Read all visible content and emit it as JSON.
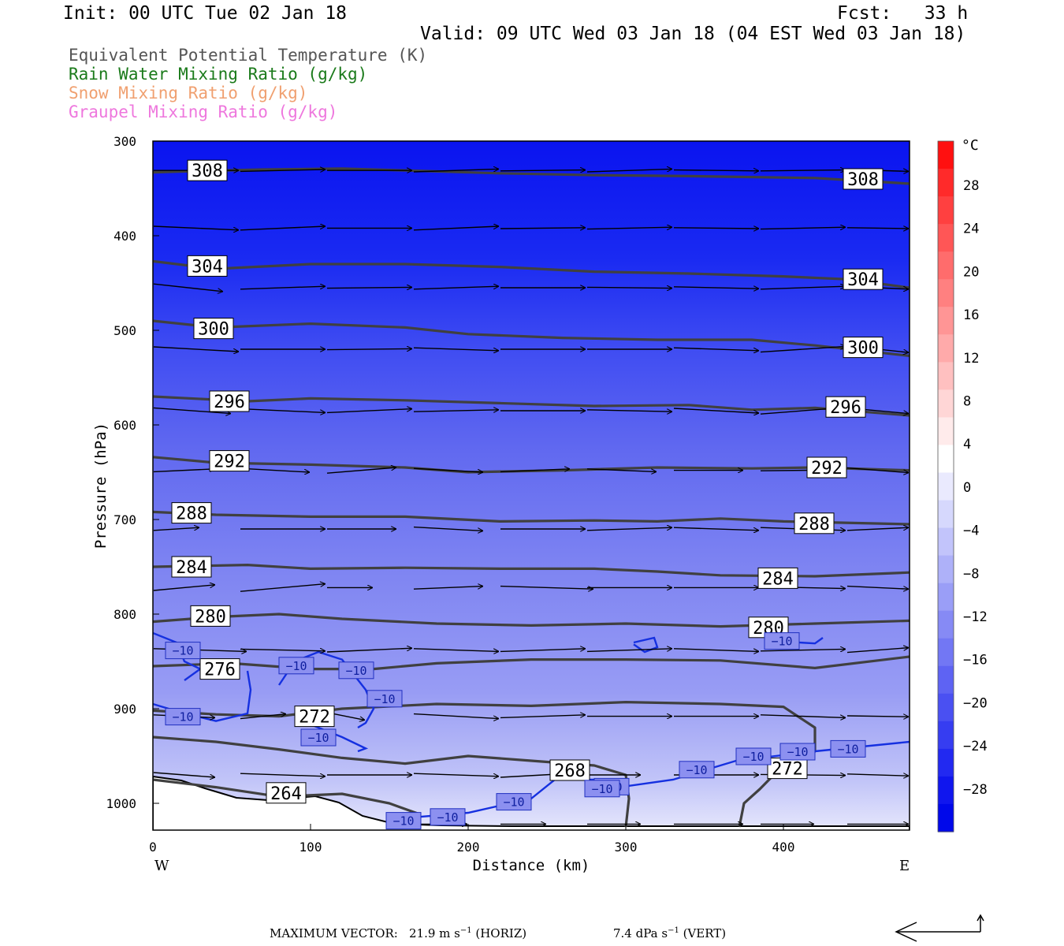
{
  "header": {
    "init": "Init: 00 UTC Tue 02 Jan 18",
    "fcst": "Fcst:   33 h",
    "valid": "Valid: 09 UTC Wed 03 Jan 18 (04 EST Wed 03 Jan 18)"
  },
  "fields": [
    {
      "label": "Equivalent Potential Temperature (K)",
      "color": "#555555"
    },
    {
      "label": "Rain Water Mixing Ratio (g/kg)",
      "color": "#1a7a1a"
    },
    {
      "label": "Snow Mixing Ratio (g/kg)",
      "color": "#f0a070"
    },
    {
      "label": "Graupel Mixing Ratio (g/kg)",
      "color": "#ee77dd"
    }
  ],
  "chart_data": {
    "type": "cross-section contour",
    "xlabel": "Distance (km)",
    "ylabel": "Pressure (hPa)",
    "xlim": [
      0,
      480
    ],
    "ylim": [
      1025,
      300
    ],
    "x_ticks": [
      0,
      100,
      200,
      300,
      400
    ],
    "y_ticks": [
      300,
      400,
      500,
      600,
      700,
      800,
      900,
      1000
    ],
    "x_end_labels": {
      "left": "W",
      "right": "E"
    },
    "colorbar": {
      "unit": "°C",
      "tick_labels": [
        "28",
        "24",
        "20",
        "16",
        "12",
        "8",
        "4",
        "0",
        "−4",
        "−8",
        "−12",
        "−16",
        "−20",
        "−24",
        "−28"
      ]
    },
    "theta_e_contours": [
      {
        "level": 308,
        "label": "308",
        "points": [
          [
            0,
            333
          ],
          [
            20,
            332
          ],
          [
            70,
            330
          ],
          [
            120,
            329
          ],
          [
            160,
            331
          ],
          [
            220,
            334
          ],
          [
            280,
            336
          ],
          [
            340,
            337
          ],
          [
            420,
            339
          ],
          [
            480,
            345
          ]
        ]
      },
      {
        "level": 304,
        "label": "304",
        "points": [
          [
            0,
            427
          ],
          [
            40,
            435
          ],
          [
            100,
            430
          ],
          [
            160,
            430
          ],
          [
            220,
            433
          ],
          [
            280,
            438
          ],
          [
            340,
            440
          ],
          [
            400,
            443
          ],
          [
            440,
            446
          ],
          [
            480,
            455
          ]
        ]
      },
      {
        "level": 300,
        "label": "300",
        "points": [
          [
            0,
            490
          ],
          [
            40,
            497
          ],
          [
            100,
            493
          ],
          [
            160,
            497
          ],
          [
            200,
            504
          ],
          [
            260,
            508
          ],
          [
            320,
            510
          ],
          [
            380,
            510
          ],
          [
            420,
            516
          ],
          [
            480,
            527
          ]
        ]
      },
      {
        "level": 296,
        "label": "296",
        "points": [
          [
            0,
            570
          ],
          [
            60,
            575
          ],
          [
            100,
            572
          ],
          [
            160,
            574
          ],
          [
            220,
            577
          ],
          [
            280,
            580
          ],
          [
            340,
            579
          ],
          [
            380,
            584
          ],
          [
            420,
            582
          ],
          [
            480,
            590
          ]
        ]
      },
      {
        "level": 292,
        "label": "292",
        "points": [
          [
            0,
            634
          ],
          [
            40,
            640
          ],
          [
            100,
            642
          ],
          [
            160,
            645
          ],
          [
            200,
            650
          ],
          [
            260,
            648
          ],
          [
            320,
            645
          ],
          [
            380,
            646
          ],
          [
            420,
            645
          ],
          [
            480,
            648
          ]
        ]
      },
      {
        "level": 288,
        "label": "288",
        "points": [
          [
            0,
            692
          ],
          [
            40,
            695
          ],
          [
            100,
            697
          ],
          [
            160,
            697
          ],
          [
            220,
            702
          ],
          [
            280,
            701
          ],
          [
            320,
            702
          ],
          [
            360,
            699
          ],
          [
            400,
            702
          ],
          [
            480,
            705
          ]
        ]
      },
      {
        "level": 284,
        "label": "284",
        "points": [
          [
            0,
            750
          ],
          [
            60,
            748
          ],
          [
            100,
            752
          ],
          [
            160,
            751
          ],
          [
            220,
            752
          ],
          [
            280,
            752
          ],
          [
            320,
            755
          ],
          [
            360,
            759
          ],
          [
            420,
            760
          ],
          [
            480,
            756
          ]
        ]
      },
      {
        "level": 280,
        "label": "280",
        "points": [
          [
            0,
            808
          ],
          [
            40,
            803
          ],
          [
            80,
            800
          ],
          [
            120,
            805
          ],
          [
            180,
            810
          ],
          [
            240,
            812
          ],
          [
            300,
            810
          ],
          [
            360,
            813
          ],
          [
            420,
            810
          ],
          [
            480,
            807
          ]
        ]
      },
      {
        "level": 276,
        "label": "276",
        "points": [
          [
            0,
            855
          ],
          [
            50,
            852
          ],
          [
            100,
            858
          ],
          [
            140,
            858
          ],
          [
            180,
            852
          ],
          [
            240,
            848
          ],
          [
            300,
            848
          ],
          [
            360,
            849
          ],
          [
            420,
            857
          ],
          [
            480,
            845
          ]
        ]
      },
      {
        "level": 272,
        "label": "272",
        "points": [
          [
            0,
            902
          ],
          [
            40,
            906
          ],
          [
            80,
            908
          ],
          [
            120,
            900
          ],
          [
            180,
            895
          ],
          [
            240,
            897
          ],
          [
            300,
            893
          ],
          [
            360,
            895
          ],
          [
            400,
            898
          ],
          [
            420,
            920
          ],
          [
            420,
            945
          ],
          [
            410,
            960
          ],
          [
            395,
            968
          ],
          [
            385,
            985
          ],
          [
            375,
            1000
          ],
          [
            372,
            1025
          ]
        ]
      },
      {
        "level": 268,
        "label": "268",
        "points": [
          [
            0,
            930
          ],
          [
            40,
            935
          ],
          [
            80,
            943
          ],
          [
            120,
            952
          ],
          [
            160,
            958
          ],
          [
            200,
            950
          ],
          [
            240,
            955
          ],
          [
            280,
            960
          ],
          [
            300,
            970
          ],
          [
            302,
            995
          ],
          [
            300,
            1025
          ]
        ]
      },
      {
        "level": 264,
        "label": "264",
        "points": [
          [
            0,
            975
          ],
          [
            40,
            983
          ],
          [
            80,
            993
          ],
          [
            120,
            990
          ],
          [
            150,
            1000
          ],
          [
            170,
            1012
          ]
        ]
      }
    ],
    "temperature_contours": [
      {
        "label": "-10",
        "points": [
          [
            0,
            820
          ],
          [
            15,
            830
          ],
          [
            20,
            850
          ],
          [
            30,
            858
          ],
          [
            20,
            870
          ]
        ]
      },
      {
        "label": "-10",
        "points": [
          [
            0,
            895
          ],
          [
            20,
            905
          ],
          [
            40,
            913
          ],
          [
            60,
            905
          ],
          [
            62,
            880
          ],
          [
            60,
            860
          ]
        ]
      },
      {
        "label": "-10",
        "points": [
          [
            80,
            875
          ],
          [
            90,
            850
          ],
          [
            105,
            840
          ],
          [
            120,
            848
          ],
          [
            135,
            880
          ],
          [
            140,
            900
          ],
          [
            135,
            915
          ],
          [
            130,
            920
          ]
        ]
      },
      {
        "label": "-10",
        "points": [
          [
            90,
            910
          ],
          [
            120,
            930
          ],
          [
            135,
            942
          ],
          [
            130,
            945
          ]
        ]
      },
      {
        "label": "-10",
        "points": [
          [
            150,
            1017
          ],
          [
            200,
            1010
          ],
          [
            240,
            995
          ],
          [
            255,
            975
          ],
          [
            280,
            975
          ],
          [
            300,
            982
          ],
          [
            330,
            975
          ],
          [
            370,
            955
          ],
          [
            420,
            945
          ],
          [
            480,
            935
          ]
        ]
      },
      {
        "label": "-10",
        "points": [
          [
            305,
            832
          ],
          [
            312,
            840
          ],
          [
            320,
            835
          ],
          [
            318,
            825
          ],
          [
            305,
            830
          ]
        ]
      },
      {
        "label": "-10",
        "points": [
          [
            385,
            822
          ],
          [
            400,
            829
          ],
          [
            420,
            831
          ],
          [
            425,
            825
          ]
        ]
      }
    ]
  },
  "footer": {
    "max_vector_label": "MAXIMUM VECTOR:",
    "horiz": "21.9 m s",
    "horiz_sup": "−1",
    "horiz_tag": " (HORIZ)",
    "vert": "7.4 dPa s",
    "vert_sup": "−1",
    "vert_tag": " (VERT)"
  }
}
